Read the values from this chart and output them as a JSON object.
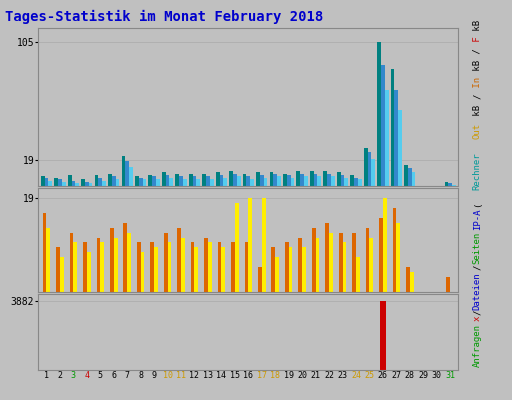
{
  "title": "Tages-Statistik im Monat February 2018",
  "title_color": "#0000cc",
  "title_fontsize": 10,
  "bg_color": "#c0c0c0",
  "plot_bg_color": "#c0c0c0",
  "day_labels": [
    "1",
    "2",
    "3",
    "4",
    "5",
    "6",
    "7",
    "8",
    "9",
    "10",
    "11",
    "12",
    "13",
    "14",
    "15",
    "16",
    "17",
    "18",
    "19",
    "20",
    "21",
    "22",
    "23",
    "24",
    "25",
    "26",
    "27",
    "28",
    "29",
    "30",
    "31"
  ],
  "day_colors": [
    "#000000",
    "#000000",
    "#009900",
    "#cc0000",
    "#000000",
    "#000000",
    "#000000",
    "#000000",
    "#000000",
    "#cc9900",
    "#cc9900",
    "#000000",
    "#000000",
    "#000000",
    "#000000",
    "#000000",
    "#cc9900",
    "#cc9900",
    "#000000",
    "#000000",
    "#000000",
    "#000000",
    "#000000",
    "#cc9900",
    "#cc9900",
    "#000000",
    "#000000",
    "#000000",
    "#000000",
    "#000000",
    "#009900"
  ],
  "panel1_ylim": [
    0,
    115
  ],
  "panel1_ytick_val": 105,
  "panel1_ytick2_val": 19,
  "panel1_green": [
    7,
    6,
    8,
    5,
    8,
    9,
    22,
    7,
    8,
    10,
    9,
    9,
    9,
    10,
    11,
    9,
    10,
    10,
    9,
    11,
    11,
    11,
    10,
    8,
    28,
    105,
    85,
    15,
    0,
    0,
    3
  ],
  "panel1_lightblue": [
    6,
    5,
    4,
    3,
    6,
    7,
    18,
    6,
    7,
    8,
    7,
    7,
    7,
    8,
    9,
    7,
    8,
    9,
    8,
    9,
    9,
    9,
    8,
    6,
    25,
    88,
    70,
    13,
    0,
    0,
    2
  ],
  "panel1_cyan": [
    4,
    3,
    2,
    2,
    4,
    5,
    14,
    5,
    5,
    6,
    5,
    5,
    5,
    6,
    7,
    5,
    6,
    7,
    6,
    7,
    7,
    7,
    6,
    5,
    20,
    70,
    55,
    10,
    0,
    0,
    1
  ],
  "panel2_ylim": [
    0,
    21
  ],
  "panel2_ytick_val": 19,
  "panel2_orange": [
    16,
    9,
    12,
    10,
    11,
    13,
    14,
    10,
    10,
    12,
    13,
    10,
    11,
    10,
    10,
    10,
    5,
    9,
    10,
    11,
    13,
    14,
    12,
    12,
    13,
    15,
    17,
    5,
    0,
    0,
    3
  ],
  "panel2_yellow": [
    13,
    7,
    10,
    8,
    10,
    11,
    12,
    8,
    9,
    10,
    11,
    9,
    10,
    9,
    18,
    19,
    19,
    7,
    9,
    9,
    11,
    12,
    10,
    7,
    11,
    19,
    14,
    4,
    0,
    0,
    0
  ],
  "panel3_ylim": [
    0,
    4300
  ],
  "panel3_ytick_val": 3882,
  "panel3_red": [
    2,
    3,
    0,
    2,
    5,
    0,
    4,
    2,
    0,
    0,
    0,
    0,
    0,
    0,
    0,
    0,
    0,
    18,
    0,
    5,
    0,
    0,
    0,
    0,
    0,
    3882,
    10,
    0,
    0,
    0,
    0
  ],
  "grid_color": "#aaaaaa",
  "bar_width": 0.28,
  "right_segments": [
    [
      "Anfragen",
      "#009900"
    ],
    [
      "x",
      "#cc0000"
    ],
    [
      "/",
      "#000000"
    ],
    [
      "Dateien",
      "#0000cc"
    ],
    [
      "/",
      "#000000"
    ],
    [
      "Seiten",
      "#009900"
    ],
    [
      "IP-A",
      "#0000cc"
    ],
    [
      "(",
      "#000000"
    ],
    [
      "  ",
      "#000000"
    ],
    [
      "Rechner",
      "#009999"
    ],
    [
      "  ",
      "#000000"
    ],
    [
      "Out",
      "#cc9900"
    ],
    [
      " kB ",
      "#000000"
    ],
    [
      "/",
      "#000000"
    ],
    [
      " In",
      "#cc6600"
    ],
    [
      " kB",
      "#000000"
    ],
    [
      " /",
      "#000000"
    ],
    [
      " F",
      "#cc0000"
    ],
    [
      " kB",
      "#000000"
    ]
  ]
}
